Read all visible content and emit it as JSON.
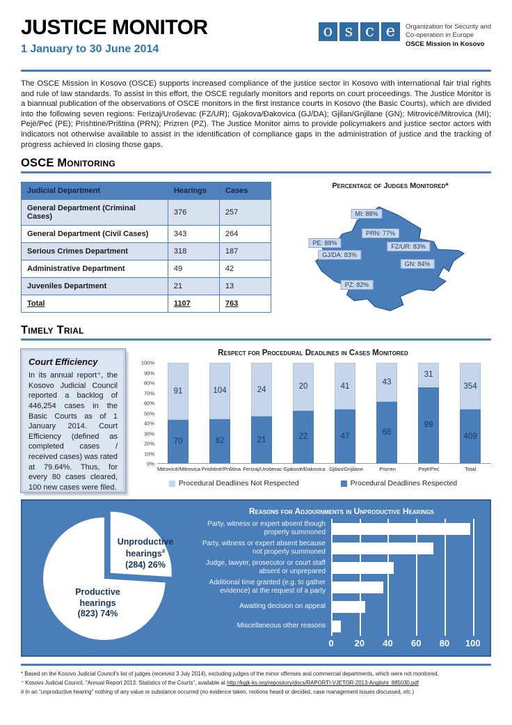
{
  "header": {
    "title": "JUSTICE MONITOR",
    "period": "1 January to 30 June 2014",
    "logo_letters": [
      "o",
      "s",
      "c",
      "e"
    ],
    "org_line1": "Organization for Security and",
    "org_line2": "Co-operation in Europe",
    "org_line3": "OSCE Mission in Kosovo"
  },
  "intro": "The OSCE Mission in Kosovo (OSCE) supports increased compliance of the justice sector in Kosovo with international fair trial rights and rule of law standards. To assist in this effort, the OSCE regularly monitors and reports on court proceedings. The Justice Monitor is a biannual publication of the observations of OSCE monitors in the first instance courts in Kosovo (the Basic Courts), which are divided into the following seven regions: Ferizaj/Uroševac (FZ/UR); Gjakova/Đakovica (GJ/DA); Gjilan/Gnjilane (GN); Mitrovicë/Mitrovica (MI); Pejë/Peć (PE); Prishtinë/Priština (PRN); Prizren (PZ). The Justice Monitor aims to provide policymakers and justice sector actors with indicators not otherwise available to assist in the identification of compliance gaps in the administration of justice and the tracking of progress achieved in closing those gaps.",
  "sections": {
    "monitoring": "OSCE Monitoring",
    "timely": "Timely Trial"
  },
  "table": {
    "headers": [
      "Judicial Department",
      "Hearings",
      "Cases"
    ],
    "rows": [
      [
        "General Department (Criminal Cases)",
        "376",
        "257"
      ],
      [
        "General Department (Civil Cases)",
        "343",
        "264"
      ],
      [
        "Serious Crimes Department",
        "318",
        "187"
      ],
      [
        "Administrative Department",
        "49",
        "42"
      ],
      [
        "Juveniles Department",
        "21",
        "13"
      ]
    ],
    "total_row": [
      "Total",
      "1107",
      "763"
    ]
  },
  "map": {
    "title": "Percentage of Judges Monitored*",
    "labels": [
      {
        "region": "MI",
        "text": "MI: 88%"
      },
      {
        "region": "PRN",
        "text": "PRN: 77%"
      },
      {
        "region": "PE",
        "text": "PE: 88%"
      },
      {
        "region": "FZ/UR",
        "text": "FZ/UR: 83%"
      },
      {
        "region": "GJ/DA",
        "text": "GJ/DA: 83%"
      },
      {
        "region": "GN",
        "text": "GN: 84%"
      },
      {
        "region": "PZ",
        "text": "PZ: 82%"
      }
    ]
  },
  "court_box": {
    "title": "Court Efficiency",
    "body": "In its annual report⁺, the Kosovo Judicial Council reported a backlog of 446,254 cases in the Basic Courts as of 1 January 2014. Court Efficiency (defined as completed cases / received cases) was rated at 79.64%. Thus, for every 80 cases cleared, 100 new cases were filed."
  },
  "chart_data": [
    {
      "type": "bar",
      "subtype": "stacked-100-percent",
      "title": "Respect for Procedural Deadlines in Cases Monitored",
      "categories": [
        "Mitrovicë/Mitrovica",
        "Prishtinë/Priština",
        "Ferizaj/Uroševac",
        "Gjakovë/Đakovica",
        "Gjilan/Gnjilane",
        "Prizren",
        "Pejë/Peć",
        "Total"
      ],
      "series": [
        {
          "name": "Procedural Deadlines Not Respected",
          "color": "#c5d5ea",
          "values": [
            91,
            104,
            24,
            20,
            41,
            43,
            31,
            354
          ]
        },
        {
          "name": "Procedural Deadlines Respected",
          "color": "#4a7ebb",
          "values": [
            70,
            82,
            21,
            22,
            47,
            68,
            99,
            409
          ]
        }
      ],
      "yticks": [
        "100%",
        "90%",
        "80%",
        "70%",
        "60%",
        "50%",
        "40%",
        "30%",
        "20%",
        "10%",
        "0%"
      ],
      "legend_position": "bottom",
      "grid": false
    },
    {
      "type": "pie",
      "slices": [
        {
          "label_line1": "Productive",
          "label_line2": "hearings",
          "sup": "",
          "value_label": "(823) 74%",
          "value": 823,
          "pct": 74,
          "exploded": false
        },
        {
          "label_line1": "Unproductive",
          "label_line2": "hearings",
          "sup": "#",
          "value_label": "(284) 26%",
          "value": 284,
          "pct": 26,
          "exploded": true
        }
      ],
      "slice_color": "#ffffff",
      "background": "#4a7ebb"
    },
    {
      "type": "bar",
      "orientation": "horizontal",
      "title": "Reasons for Adjournments in Unproductive Hearings",
      "categories": [
        "Party, witness or expert absent though properly summoned",
        "Party, witness or expert absent because not properly summoned",
        "Judge, lawyer, prosecutor or court staff absent or unprepared",
        "Additional time granted (e.g. to gather evidence) at the request of a party",
        "Awaiting decision on appeal",
        "Miscellaneous other reasons"
      ],
      "values": [
        98,
        72,
        44,
        37,
        24,
        7
      ],
      "xticks": [
        0,
        20,
        40,
        60,
        80,
        100
      ],
      "xlim": [
        0,
        107
      ],
      "bar_color": "#ffffff",
      "grid": true
    }
  ],
  "footnotes": [
    {
      "text": "* Based on the Kosovo Judicial Council's list of judges (received 3 July 2014), excluding judges of the minor offenses and commercial departments, which were not monitored."
    },
    {
      "prefix": "⁺ Kosovo Judicial Council, \"Annual Report 2013: Statistics of the Courts\", available at ",
      "link": "http://kgjk-ks.org/repository/docs/RAPORTI-VJETOR-2013-Anglisht_885030.pdf"
    },
    {
      "text": "# In an \"unproductive hearing\" nothing of any value or substance occurred (no evidence taken, motions heard or decided, case management issues discussed, etc.)"
    }
  ],
  "colors": {
    "accent_blue": "#4a7ebb",
    "dark_navy": "#17375e",
    "light_blue": "#c5d5ea",
    "table_header": "#4f81bd",
    "row_alt": "#d7e1f1",
    "date_blue": "#2e74b5"
  }
}
